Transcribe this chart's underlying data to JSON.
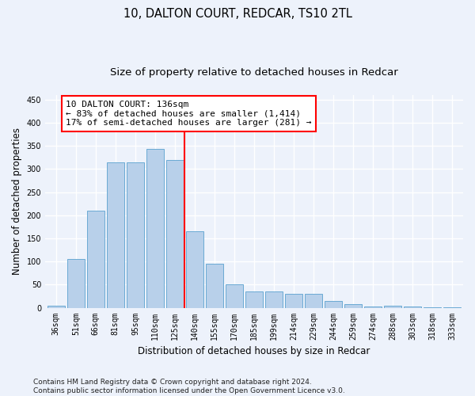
{
  "title": "10, DALTON COURT, REDCAR, TS10 2TL",
  "subtitle": "Size of property relative to detached houses in Redcar",
  "xlabel": "Distribution of detached houses by size in Redcar",
  "ylabel": "Number of detached properties",
  "categories": [
    "36sqm",
    "51sqm",
    "66sqm",
    "81sqm",
    "95sqm",
    "110sqm",
    "125sqm",
    "140sqm",
    "155sqm",
    "170sqm",
    "185sqm",
    "199sqm",
    "214sqm",
    "229sqm",
    "244sqm",
    "259sqm",
    "274sqm",
    "288sqm",
    "303sqm",
    "318sqm",
    "333sqm"
  ],
  "values": [
    5,
    105,
    210,
    315,
    315,
    343,
    320,
    165,
    95,
    50,
    35,
    35,
    30,
    30,
    15,
    8,
    3,
    5,
    2,
    1,
    1
  ],
  "bar_color": "#b8d0ea",
  "bar_edge_color": "#6aaad4",
  "vline_x_index": 7,
  "vline_color": "red",
  "annotation_line1": "10 DALTON COURT: 136sqm",
  "annotation_line2": "← 83% of detached houses are smaller (1,414)",
  "annotation_line3": "17% of semi-detached houses are larger (281) →",
  "annotation_box_color": "white",
  "annotation_box_edge_color": "red",
  "ylim": [
    0,
    460
  ],
  "yticks": [
    0,
    50,
    100,
    150,
    200,
    250,
    300,
    350,
    400,
    450
  ],
  "footer_line1": "Contains HM Land Registry data © Crown copyright and database right 2024.",
  "footer_line2": "Contains public sector information licensed under the Open Government Licence v3.0.",
  "background_color": "#edf2fb",
  "grid_color": "white",
  "title_fontsize": 10.5,
  "subtitle_fontsize": 9.5,
  "axis_label_fontsize": 8.5,
  "tick_fontsize": 7,
  "annotation_fontsize": 8,
  "footer_fontsize": 6.5
}
